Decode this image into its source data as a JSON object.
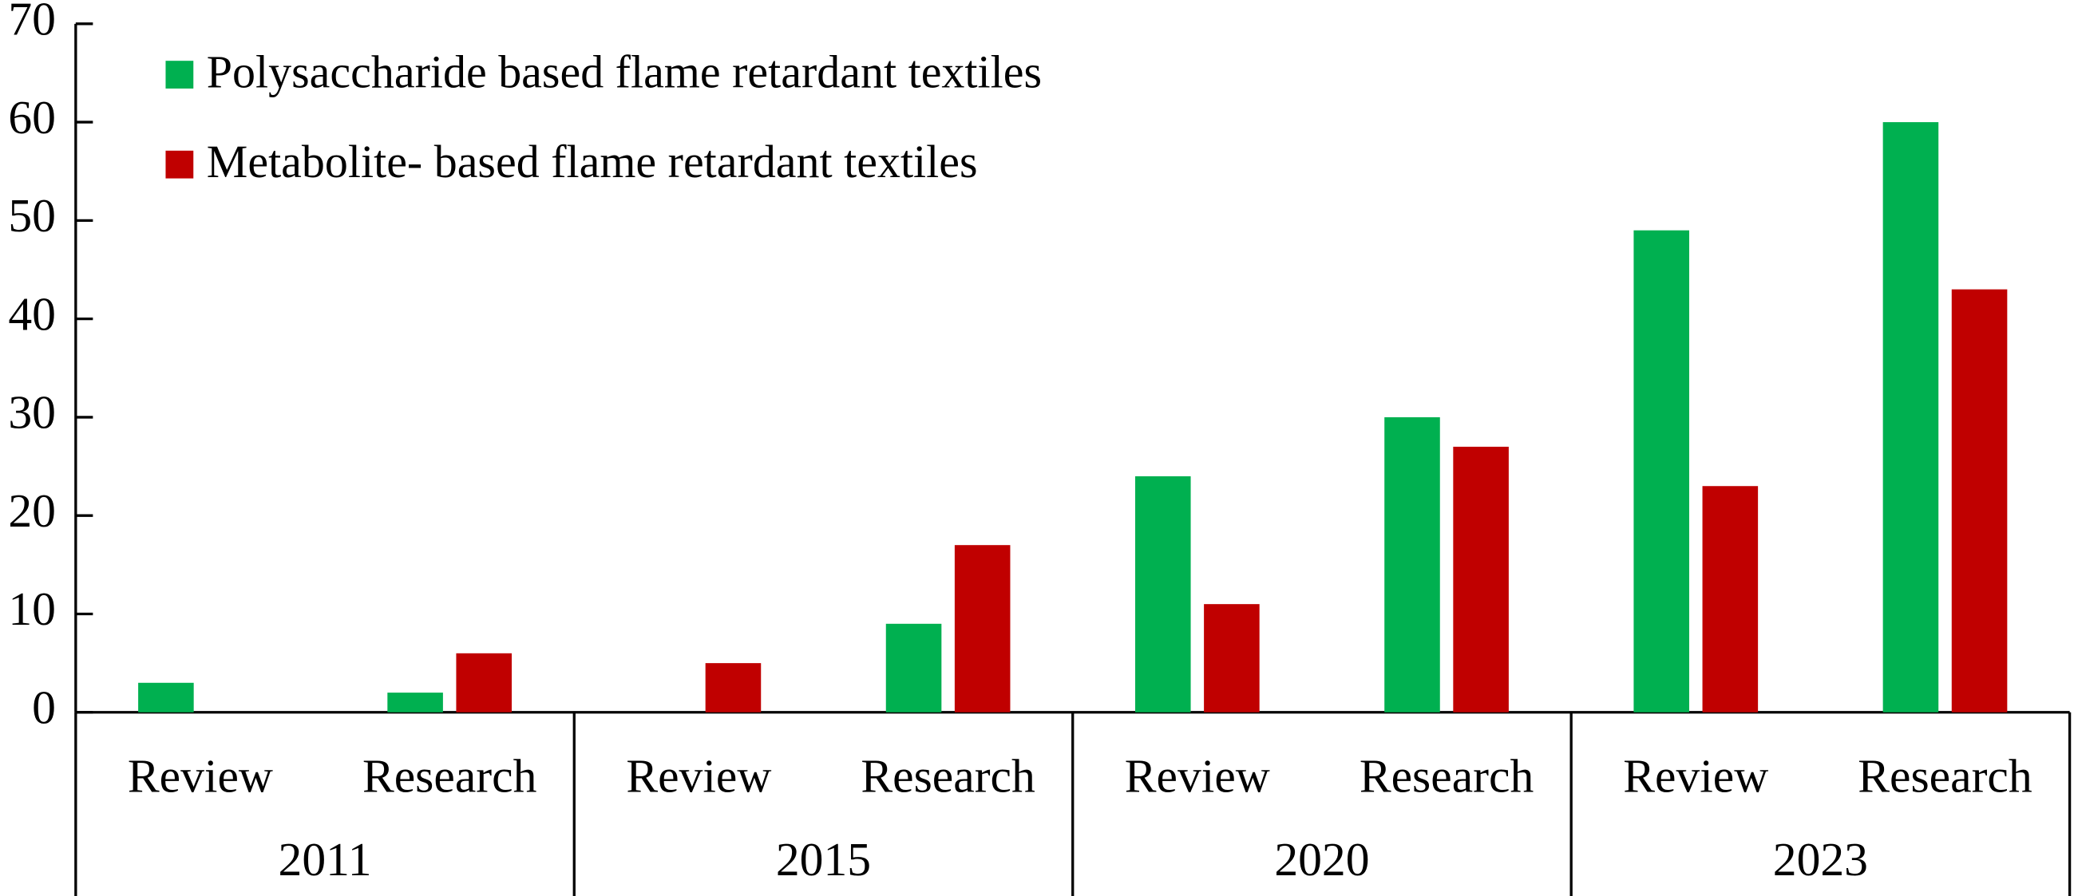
{
  "chart_data": {
    "type": "bar",
    "groups": [
      "2011",
      "2015",
      "2020",
      "2023"
    ],
    "categories": [
      "Review",
      "Research",
      "Review",
      "Research",
      "Review",
      "Research",
      "Review",
      "Research"
    ],
    "series": [
      {
        "name": "Polysaccharide based flame retardant textiles",
        "color": "#00b050",
        "values": [
          3,
          2,
          0,
          9,
          24,
          30,
          49,
          60
        ]
      },
      {
        "name": "Metabolite- based flame retardant textiles",
        "color": "#c00000",
        "values": [
          0,
          6,
          5,
          17,
          11,
          27,
          23,
          43
        ]
      }
    ],
    "ylim": [
      0,
      70
    ],
    "yticks": [
      0,
      10,
      20,
      30,
      40,
      50,
      60,
      70
    ],
    "legend": "upper left"
  }
}
